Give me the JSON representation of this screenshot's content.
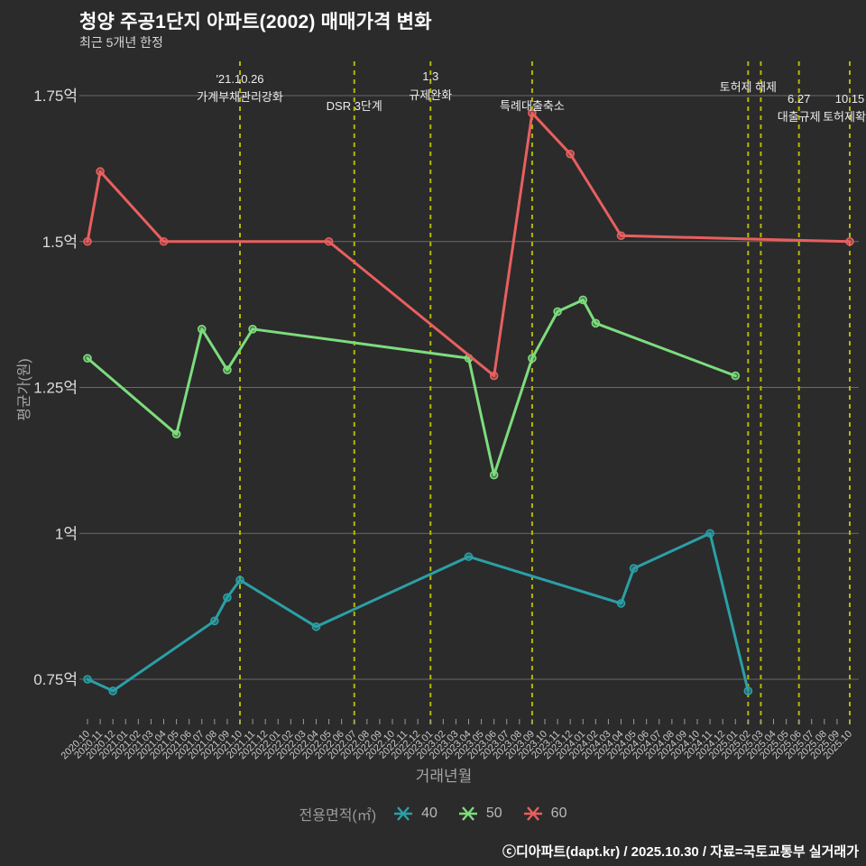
{
  "header": {
    "title": "청양 주공1단지 아파트(2002) 매매가격 변화",
    "subtitle": "최근 5개년 한정"
  },
  "chart_data": {
    "type": "line",
    "title": "청양 주공1단지 아파트(2002) 매매가격 변화",
    "subtitle": "최근 5개년 한정",
    "xlabel": "거래년월",
    "ylabel": "평균가(원)",
    "value_unit": "억원",
    "ylim": [
      0.7,
      1.78
    ],
    "grid": true,
    "legend_position": "bottom",
    "y_ticks": [
      {
        "label": "1.75억",
        "value": 1.75
      },
      {
        "label": "1.5억",
        "value": 1.5
      },
      {
        "label": "1.25억",
        "value": 1.25
      },
      {
        "label": "1억",
        "value": 1.0
      },
      {
        "label": "0.75억",
        "value": 0.75
      }
    ],
    "x_ticks": [
      "2020.10",
      "2020.11",
      "2020.12",
      "2021.01",
      "2021.02",
      "2021.03",
      "2021.04",
      "2021.05",
      "2021.06",
      "2021.07",
      "2021.08",
      "2021.09",
      "2021.10",
      "2021.11",
      "2021.12",
      "2022.01",
      "2022.02",
      "2022.03",
      "2022.04",
      "2022.05",
      "2022.06",
      "2022.07",
      "2022.08",
      "2022.09",
      "2022.10",
      "2022.11",
      "2022.12",
      "2023.01",
      "2023.02",
      "2023.03",
      "2023.04",
      "2023.05",
      "2023.06",
      "2023.07",
      "2023.08",
      "2023.09",
      "2023.10",
      "2023.11",
      "2023.12",
      "2024.01",
      "2024.02",
      "2024.03",
      "2024.04",
      "2024.05",
      "2024.06",
      "2024.07",
      "2024.08",
      "2024.09",
      "2024.10",
      "2024.11",
      "2024.12",
      "2025.01",
      "2025.02",
      "2025.03",
      "2025.04",
      "2025.05",
      "2025.06",
      "2025.07",
      "2025.08",
      "2025.09",
      "2025.10"
    ],
    "series": [
      {
        "name": "40",
        "color": "#2aa0a6",
        "points": [
          [
            "2020.10",
            0.75
          ],
          [
            "2020.12",
            0.73
          ],
          [
            "2021.08",
            0.85
          ],
          [
            "2021.09",
            0.89
          ],
          [
            "2021.10",
            0.92
          ],
          [
            "2022.04",
            0.84
          ],
          [
            "2023.04",
            0.96
          ],
          [
            "2024.04",
            0.88
          ],
          [
            "2024.05",
            0.94
          ],
          [
            "2024.11",
            1.0
          ],
          [
            "2025.02",
            0.73
          ]
        ]
      },
      {
        "name": "50",
        "color": "#7ddc7d",
        "points": [
          [
            "2020.10",
            1.3
          ],
          [
            "2021.05",
            1.17
          ],
          [
            "2021.07",
            1.35
          ],
          [
            "2021.09",
            1.28
          ],
          [
            "2021.11",
            1.35
          ],
          [
            "2023.04",
            1.3
          ],
          [
            "2023.06",
            1.1
          ],
          [
            "2023.09",
            1.3
          ],
          [
            "2023.11",
            1.38
          ],
          [
            "2024.01",
            1.4
          ],
          [
            "2024.02",
            1.36
          ],
          [
            "2025.01",
            1.27
          ]
        ]
      },
      {
        "name": "60",
        "color": "#e95f5f",
        "points": [
          [
            "2020.10",
            1.5
          ],
          [
            "2020.11",
            1.62
          ],
          [
            "2021.04",
            1.5
          ],
          [
            "2022.05",
            1.5
          ],
          [
            "2023.06",
            1.27
          ],
          [
            "2023.09",
            1.72
          ],
          [
            "2023.12",
            1.65
          ],
          [
            "2024.04",
            1.51
          ],
          [
            "2025.10",
            1.5
          ]
        ]
      }
    ],
    "annotations": [
      {
        "month": "2021.10",
        "lines": [
          "'21.10.26",
          "가계부채관리강화"
        ],
        "baselines": [
          92,
          112
        ]
      },
      {
        "month": "2022.07",
        "lines": [
          "DSR 3단계"
        ],
        "baselines": [
          122
        ]
      },
      {
        "month": "2023.01",
        "lines": [
          "1.3",
          "규제완화"
        ],
        "baselines": [
          89,
          110
        ]
      },
      {
        "month": "2023.09",
        "lines": [
          "특례대출축소"
        ],
        "baselines": [
          122
        ]
      },
      {
        "month": "2025.02",
        "lines": [
          "토허제 해제"
        ],
        "baselines": [
          101
        ]
      },
      {
        "month": "2025.03",
        "lines": [],
        "baselines": []
      },
      {
        "month": "2025.06",
        "lines": [
          "6.27",
          "대출규제"
        ],
        "baselines": [
          114,
          134
        ]
      },
      {
        "month": "2025.10",
        "lines": [
          "10.15",
          "토허제확대"
        ],
        "baselines": [
          114,
          134
        ]
      }
    ]
  },
  "legend": {
    "title": "전용면적(㎡)",
    "items": [
      {
        "label": "40",
        "color": "#2aa0a6"
      },
      {
        "label": "50",
        "color": "#7ddc7d"
      },
      {
        "label": "60",
        "color": "#e95f5f"
      }
    ]
  },
  "footer": {
    "text": "ⓒ디아파트(dapt.kr) / 2025.10.30 / 자료=국토교통부 실거래가"
  },
  "colors": {
    "background": "#2b2b2b",
    "grid": "#6a6a6a",
    "event_line": "#b5b800",
    "tick_mark": "#9a9a9a",
    "tick_text": "#c9c9c9",
    "y_tick_text": "#dcdcdc",
    "annotation_text": "#ececec"
  }
}
